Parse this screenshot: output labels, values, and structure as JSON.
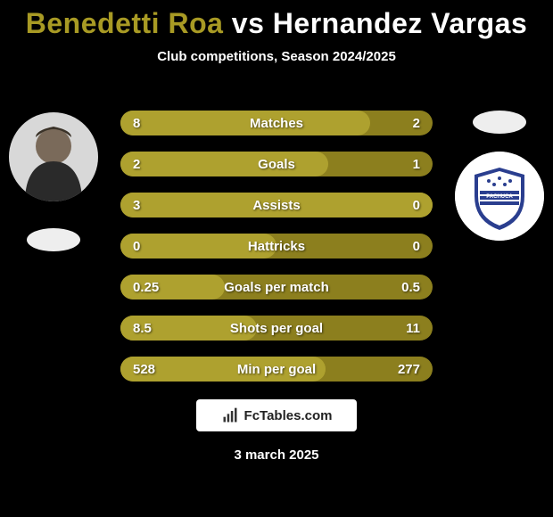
{
  "colors": {
    "p1": "#a89a24",
    "p2": "#ffffff",
    "bar_bg": "#8c7f1e",
    "bar_fill": "#aea12f"
  },
  "title": {
    "p1": "Benedetti Roa",
    "vs": "vs",
    "p2": "Hernandez Vargas"
  },
  "subtitle": "Club competitions, Season 2024/2025",
  "watermark": "FcTables.com",
  "date": "3 march 2025",
  "rows": [
    {
      "label": "Matches",
      "v1": "8",
      "v2": "2",
      "v1n": 8,
      "v2n": 2
    },
    {
      "label": "Goals",
      "v1": "2",
      "v2": "1",
      "v1n": 2,
      "v2n": 1
    },
    {
      "label": "Assists",
      "v1": "3",
      "v2": "0",
      "v1n": 3,
      "v2n": 0
    },
    {
      "label": "Hattricks",
      "v1": "0",
      "v2": "0",
      "v1n": 0,
      "v2n": 0
    },
    {
      "label": "Goals per match",
      "v1": "0.25",
      "v2": "0.5",
      "v1n": 0.25,
      "v2n": 0.5
    },
    {
      "label": "Shots per goal",
      "v1": "8.5",
      "v2": "11",
      "v1n": 8.5,
      "v2n": 11
    },
    {
      "label": "Min per goal",
      "v1": "528",
      "v2": "277",
      "v1n": 528,
      "v2n": 277
    }
  ]
}
